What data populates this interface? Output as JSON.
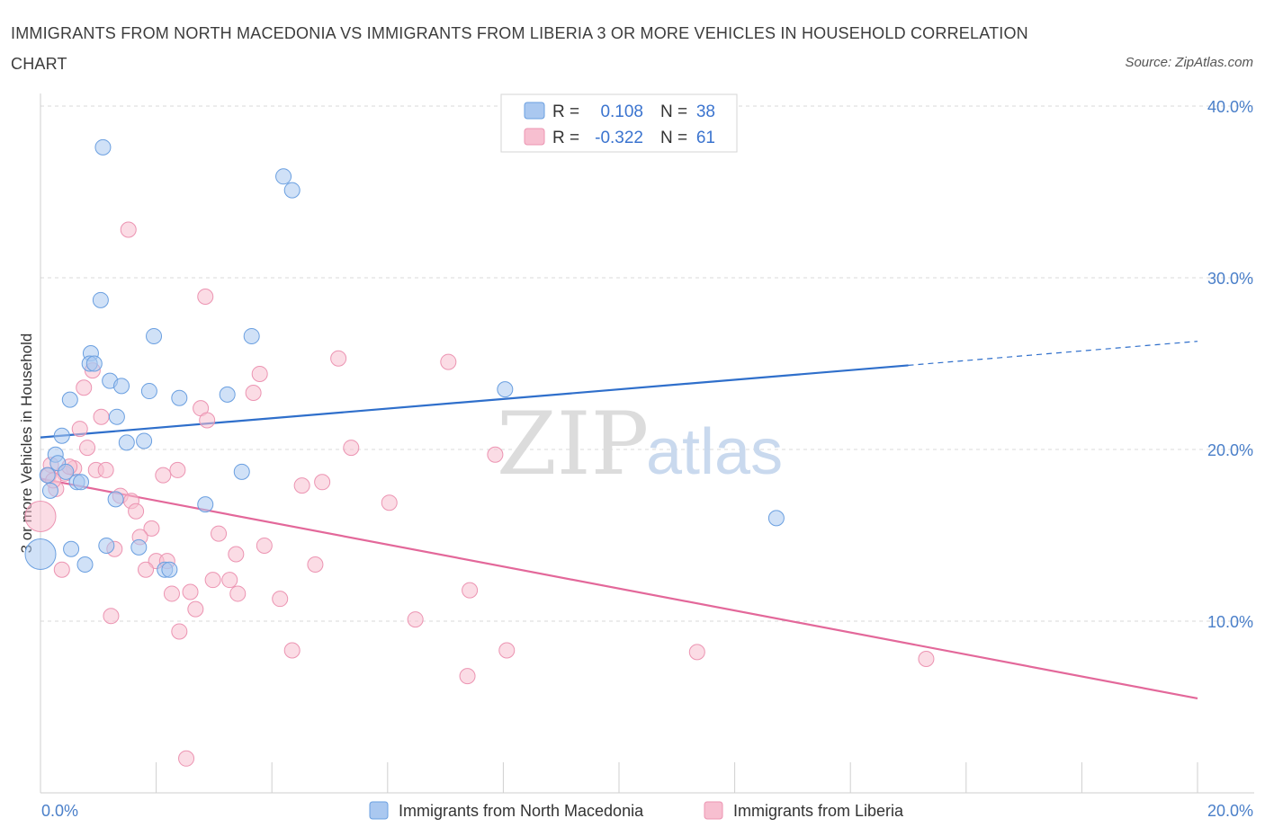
{
  "title": "IMMIGRANTS FROM NORTH MACEDONIA VS IMMIGRANTS FROM LIBERIA 3 OR MORE VEHICLES IN HOUSEHOLD CORRELATION CHART",
  "source": "Source: ZipAtlas.com",
  "watermark": {
    "zip": "ZIP",
    "atlas": "atlas"
  },
  "colors": {
    "blue_fill": "#aac8f0",
    "blue_stroke": "#6a9fe0",
    "blue_line": "#2f6fcb",
    "pink_fill": "#f7bfd0",
    "pink_stroke": "#ec94b2",
    "pink_line": "#e3689a",
    "grid": "#d9d9d9",
    "tick_text": "#4a7fc9"
  },
  "legend": {
    "r_label": "R =",
    "n_label": "N =",
    "rows": [
      {
        "series": "blue",
        "r": "0.108",
        "n": "38"
      },
      {
        "series": "pink",
        "r": "-0.322",
        "n": "61"
      }
    ]
  },
  "chart_data": {
    "type": "scatter",
    "title": "IMMIGRANTS FROM NORTH MACEDONIA VS IMMIGRANTS FROM LIBERIA 3 OR MORE VEHICLES IN HOUSEHOLD CORRELATION CHART",
    "xlabel": "",
    "ylabel": "3 or more Vehicles in Household",
    "xlim": [
      0,
      20
    ],
    "ylim": [
      0,
      40
    ],
    "x_tick_labels": [
      "0.0%",
      "20.0%"
    ],
    "y_ticks": [
      10,
      20,
      30,
      40
    ],
    "y_tick_labels": [
      "10.0%",
      "20.0%",
      "30.0%",
      "40.0%"
    ],
    "grid": true,
    "series": [
      {
        "name": "Immigrants from North Macedonia",
        "color": "blue",
        "r": 0.108,
        "n": 38,
        "trend": {
          "x0": 0,
          "y0": 20.7,
          "x1": 15.0,
          "y1": 24.9,
          "dash_x1": 20.0,
          "dash_y1": 26.3
        },
        "points": [
          {
            "x": 1.08,
            "y": 37.6,
            "s": 1
          },
          {
            "x": 4.2,
            "y": 35.9,
            "s": 1
          },
          {
            "x": 4.35,
            "y": 35.1,
            "s": 1
          },
          {
            "x": 1.04,
            "y": 28.7,
            "s": 1
          },
          {
            "x": 1.96,
            "y": 26.6,
            "s": 1
          },
          {
            "x": 3.65,
            "y": 26.6,
            "s": 1
          },
          {
            "x": 0.87,
            "y": 25.6,
            "s": 1
          },
          {
            "x": 0.85,
            "y": 25.0,
            "s": 1
          },
          {
            "x": 0.93,
            "y": 25.0,
            "s": 1
          },
          {
            "x": 1.2,
            "y": 24.0,
            "s": 1
          },
          {
            "x": 1.4,
            "y": 23.7,
            "s": 1
          },
          {
            "x": 1.88,
            "y": 23.4,
            "s": 1
          },
          {
            "x": 0.51,
            "y": 22.9,
            "s": 1
          },
          {
            "x": 2.4,
            "y": 23.0,
            "s": 1
          },
          {
            "x": 3.23,
            "y": 23.2,
            "s": 1
          },
          {
            "x": 8.03,
            "y": 23.5,
            "s": 1
          },
          {
            "x": 1.32,
            "y": 21.9,
            "s": 1
          },
          {
            "x": 0.37,
            "y": 20.8,
            "s": 1
          },
          {
            "x": 1.49,
            "y": 20.4,
            "s": 1
          },
          {
            "x": 1.79,
            "y": 20.5,
            "s": 1
          },
          {
            "x": 0.26,
            "y": 19.7,
            "s": 1
          },
          {
            "x": 0.3,
            "y": 19.2,
            "s": 1
          },
          {
            "x": 0.12,
            "y": 18.5,
            "s": 1
          },
          {
            "x": 0.44,
            "y": 18.7,
            "s": 1
          },
          {
            "x": 0.63,
            "y": 18.1,
            "s": 1
          },
          {
            "x": 0.7,
            "y": 18.1,
            "s": 1
          },
          {
            "x": 3.48,
            "y": 18.7,
            "s": 1
          },
          {
            "x": 0.17,
            "y": 17.6,
            "s": 1
          },
          {
            "x": 1.3,
            "y": 17.1,
            "s": 1
          },
          {
            "x": 2.85,
            "y": 16.8,
            "s": 1
          },
          {
            "x": 12.72,
            "y": 16.0,
            "s": 1
          },
          {
            "x": 0.53,
            "y": 14.2,
            "s": 1
          },
          {
            "x": 1.14,
            "y": 14.4,
            "s": 1
          },
          {
            "x": 1.7,
            "y": 14.3,
            "s": 1
          },
          {
            "x": 0.77,
            "y": 13.3,
            "s": 1
          },
          {
            "x": 2.15,
            "y": 13.0,
            "s": 1
          },
          {
            "x": 2.23,
            "y": 13.0,
            "s": 1
          },
          {
            "x": 0.0,
            "y": 13.9,
            "s": 2
          }
        ]
      },
      {
        "name": "Immigrants from Liberia",
        "color": "pink",
        "r": -0.322,
        "n": 61,
        "trend": {
          "x0": 0,
          "y0": 18.3,
          "x1": 20.0,
          "y1": 5.5
        },
        "points": [
          {
            "x": 1.52,
            "y": 32.8,
            "s": 1
          },
          {
            "x": 2.85,
            "y": 28.9,
            "s": 1
          },
          {
            "x": 5.15,
            "y": 25.3,
            "s": 1
          },
          {
            "x": 7.05,
            "y": 25.1,
            "s": 1
          },
          {
            "x": 0.9,
            "y": 24.6,
            "s": 1
          },
          {
            "x": 3.79,
            "y": 24.4,
            "s": 1
          },
          {
            "x": 0.75,
            "y": 23.6,
            "s": 1
          },
          {
            "x": 3.68,
            "y": 23.3,
            "s": 1
          },
          {
            "x": 2.77,
            "y": 22.4,
            "s": 1
          },
          {
            "x": 1.05,
            "y": 21.9,
            "s": 1
          },
          {
            "x": 2.88,
            "y": 21.7,
            "s": 1
          },
          {
            "x": 0.68,
            "y": 21.2,
            "s": 1
          },
          {
            "x": 0.81,
            "y": 20.1,
            "s": 1
          },
          {
            "x": 5.37,
            "y": 20.1,
            "s": 1
          },
          {
            "x": 7.86,
            "y": 19.7,
            "s": 1
          },
          {
            "x": 0.18,
            "y": 19.1,
            "s": 1
          },
          {
            "x": 0.58,
            "y": 18.9,
            "s": 1
          },
          {
            "x": 0.42,
            "y": 18.6,
            "s": 1
          },
          {
            "x": 0.96,
            "y": 18.8,
            "s": 1
          },
          {
            "x": 1.13,
            "y": 18.8,
            "s": 1
          },
          {
            "x": 2.37,
            "y": 18.8,
            "s": 1
          },
          {
            "x": 0.14,
            "y": 18.5,
            "s": 1
          },
          {
            "x": 2.12,
            "y": 18.5,
            "s": 1
          },
          {
            "x": 4.87,
            "y": 18.1,
            "s": 1
          },
          {
            "x": 4.52,
            "y": 17.9,
            "s": 1
          },
          {
            "x": 0.27,
            "y": 17.7,
            "s": 1
          },
          {
            "x": 1.38,
            "y": 17.3,
            "s": 1
          },
          {
            "x": 1.57,
            "y": 17.0,
            "s": 1
          },
          {
            "x": 6.03,
            "y": 16.9,
            "s": 1
          },
          {
            "x": 1.65,
            "y": 16.4,
            "s": 1
          },
          {
            "x": 0.0,
            "y": 16.1,
            "s": 2
          },
          {
            "x": 1.92,
            "y": 15.4,
            "s": 1
          },
          {
            "x": 3.08,
            "y": 15.1,
            "s": 1
          },
          {
            "x": 1.72,
            "y": 14.9,
            "s": 1
          },
          {
            "x": 3.87,
            "y": 14.4,
            "s": 1
          },
          {
            "x": 1.28,
            "y": 14.2,
            "s": 1
          },
          {
            "x": 3.38,
            "y": 13.9,
            "s": 1
          },
          {
            "x": 2.0,
            "y": 13.5,
            "s": 1
          },
          {
            "x": 2.19,
            "y": 13.5,
            "s": 1
          },
          {
            "x": 4.75,
            "y": 13.3,
            "s": 1
          },
          {
            "x": 0.37,
            "y": 13.0,
            "s": 1
          },
          {
            "x": 1.82,
            "y": 13.0,
            "s": 1
          },
          {
            "x": 2.98,
            "y": 12.4,
            "s": 1
          },
          {
            "x": 3.27,
            "y": 12.4,
            "s": 1
          },
          {
            "x": 2.27,
            "y": 11.6,
            "s": 1
          },
          {
            "x": 2.59,
            "y": 11.7,
            "s": 1
          },
          {
            "x": 3.41,
            "y": 11.6,
            "s": 1
          },
          {
            "x": 7.42,
            "y": 11.8,
            "s": 1
          },
          {
            "x": 4.14,
            "y": 11.3,
            "s": 1
          },
          {
            "x": 2.68,
            "y": 10.7,
            "s": 1
          },
          {
            "x": 1.22,
            "y": 10.3,
            "s": 1
          },
          {
            "x": 6.48,
            "y": 10.1,
            "s": 1
          },
          {
            "x": 2.4,
            "y": 9.4,
            "s": 1
          },
          {
            "x": 4.35,
            "y": 8.3,
            "s": 1
          },
          {
            "x": 8.06,
            "y": 8.3,
            "s": 1
          },
          {
            "x": 11.35,
            "y": 8.2,
            "s": 1
          },
          {
            "x": 15.31,
            "y": 7.8,
            "s": 1
          },
          {
            "x": 7.38,
            "y": 6.8,
            "s": 1
          },
          {
            "x": 2.52,
            "y": 2.0,
            "s": 1
          },
          {
            "x": 0.22,
            "y": 18.2,
            "s": 1
          },
          {
            "x": 0.5,
            "y": 19.0,
            "s": 1
          }
        ]
      }
    ]
  }
}
